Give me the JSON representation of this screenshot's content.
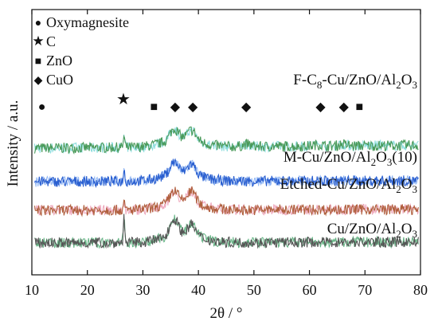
{
  "chart_data": {
    "type": "line",
    "xlabel": "2θ / °",
    "ylabel": "Intensity / a.u.",
    "xlim": [
      10,
      80
    ],
    "x_ticks": [
      "10",
      "20",
      "30",
      "40",
      "50",
      "60",
      "70",
      "80"
    ],
    "y_ticks": "none",
    "grid": false,
    "legend": {
      "placement": "top-left",
      "entries": [
        {
          "marker": "●",
          "label": "Oxymagnesite"
        },
        {
          "marker": "★",
          "label": "C"
        },
        {
          "marker": "■",
          "label": "ZnO"
        },
        {
          "marker": "◆",
          "label": "CuO"
        }
      ]
    },
    "series": [
      {
        "name": "F-C8-Cu/ZnO/Al2O3",
        "label_parts": [
          [
            "F-C",
            ""
          ],
          [
            "8",
            "sub"
          ],
          [
            "-Cu/ZnO/Al",
            ""
          ],
          [
            "2",
            "sub"
          ],
          [
            "O",
            ""
          ],
          [
            "3",
            "sub"
          ]
        ],
        "color": "#4a9a5a",
        "noise_color": "#5fcfcf",
        "offset": 3,
        "peaks": [
          [
            26.6,
            0.55
          ],
          [
            35.6,
            0.55
          ],
          [
            38.8,
            0.5
          ],
          [
            48.7,
            0.12
          ],
          [
            61.5,
            0.08
          ],
          [
            66.0,
            0.08
          ]
        ]
      },
      {
        "name": "M-Cu/ZnO/Al2O3(10)",
        "label_parts": [
          [
            "M-Cu/ZnO/Al",
            ""
          ],
          [
            "2",
            "sub"
          ],
          [
            "O",
            ""
          ],
          [
            "3",
            "sub"
          ],
          [
            "(10)",
            ""
          ]
        ],
        "color": "#2a5fd0",
        "noise_color": "#6b9ef0",
        "offset": 2,
        "peaks": [
          [
            26.6,
            0.6
          ],
          [
            35.6,
            0.6
          ],
          [
            38.8,
            0.5
          ]
        ]
      },
      {
        "name": "Etched-Cu/ZnO/Al2O3",
        "label_parts": [
          [
            "Etched-Cu/ZnO/Al",
            ""
          ],
          [
            "2",
            "sub"
          ],
          [
            "O",
            ""
          ],
          [
            "3",
            "sub"
          ]
        ],
        "color": "#b0603e",
        "noise_color": "#e88aa6",
        "offset": 1,
        "peaks": [
          [
            26.6,
            0.35
          ],
          [
            35.6,
            0.6
          ],
          [
            38.8,
            0.6
          ]
        ]
      },
      {
        "name": "Cu/ZnO/Al2O3",
        "label_parts": [
          [
            "Cu/ZnO/Al",
            ""
          ],
          [
            "2",
            "sub"
          ],
          [
            "O",
            ""
          ],
          [
            "3",
            "sub"
          ]
        ],
        "color": "#555555",
        "noise_color": "#2f9a5a",
        "offset": 0,
        "peaks": [
          [
            26.6,
            1.3
          ],
          [
            35.6,
            0.85
          ],
          [
            38.8,
            0.55
          ]
        ]
      }
    ],
    "peak_markers": [
      {
        "symbol": "●",
        "phase": "Oxymagnesite",
        "x": 11.8
      },
      {
        "symbol": "★",
        "phase": "C",
        "x": 26.5
      },
      {
        "symbol": "■",
        "phase": "ZnO",
        "x": 32.0
      },
      {
        "symbol": "◆",
        "phase": "CuO",
        "x": 35.8
      },
      {
        "symbol": "◆",
        "phase": "CuO",
        "x": 39.0
      },
      {
        "symbol": "◆",
        "phase": "CuO",
        "x": 48.6
      },
      {
        "symbol": "◆",
        "phase": "CuO",
        "x": 62.0
      },
      {
        "symbol": "◆",
        "phase": "CuO",
        "x": 66.2
      },
      {
        "symbol": "■",
        "phase": "ZnO",
        "x": 69.0
      }
    ]
  }
}
